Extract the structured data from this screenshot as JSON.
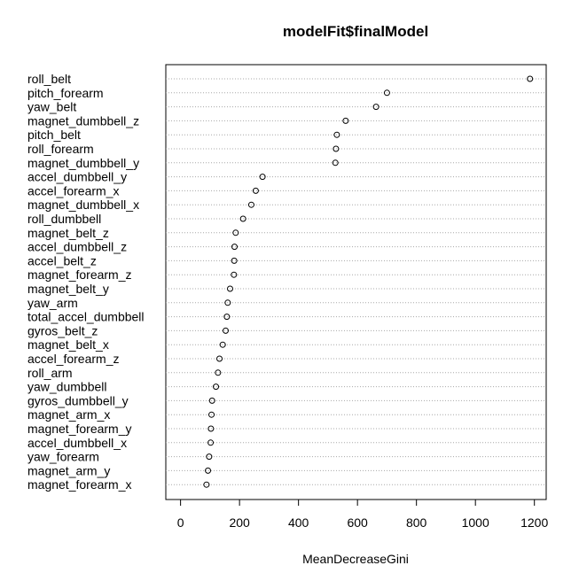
{
  "chart_data": {
    "type": "scatter",
    "title": "modelFit$finalModel",
    "xlabel": "MeanDecreaseGini",
    "ylabel": "",
    "xlim": [
      -50,
      1240
    ],
    "xticks": [
      0,
      200,
      400,
      600,
      800,
      1000,
      1200
    ],
    "grid": "dotted horizontal per variable",
    "variables": [
      "roll_belt",
      "pitch_forearm",
      "yaw_belt",
      "magnet_dumbbell_z",
      "pitch_belt",
      "roll_forearm",
      "magnet_dumbbell_y",
      "accel_dumbbell_y",
      "accel_forearm_x",
      "magnet_dumbbell_x",
      "roll_dumbbell",
      "magnet_belt_z",
      "accel_dumbbell_z",
      "accel_belt_z",
      "magnet_forearm_z",
      "magnet_belt_y",
      "yaw_arm",
      "total_accel_dumbbell",
      "gyros_belt_z",
      "magnet_belt_x",
      "accel_forearm_z",
      "roll_arm",
      "yaw_dumbbell",
      "gyros_dumbbell_y",
      "magnet_arm_x",
      "magnet_forearm_y",
      "accel_dumbbell_x",
      "yaw_forearm",
      "magnet_arm_y",
      "magnet_forearm_x"
    ],
    "values": [
      1185,
      700,
      663,
      560,
      530,
      527,
      525,
      278,
      255,
      240,
      212,
      187,
      183,
      182,
      181,
      168,
      160,
      157,
      153,
      143,
      132,
      127,
      120,
      107,
      105,
      103,
      102,
      97,
      93,
      88
    ]
  }
}
